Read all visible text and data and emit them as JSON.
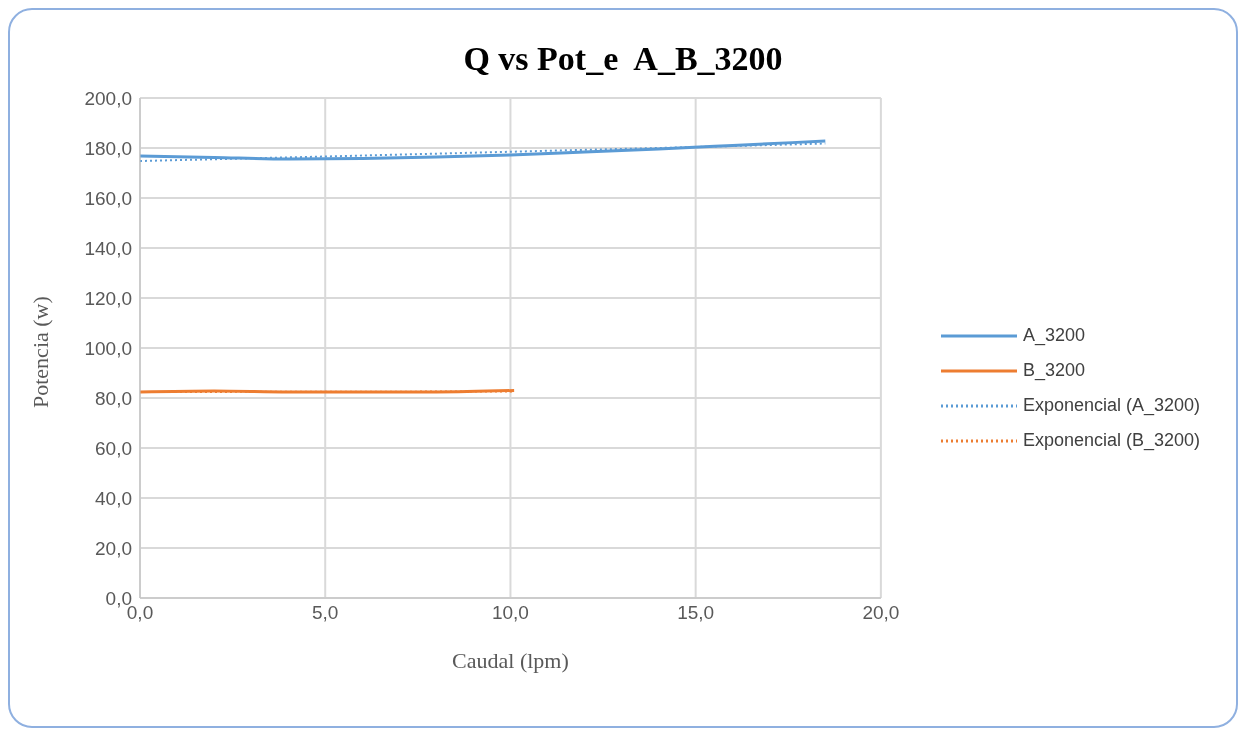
{
  "chart_data": {
    "type": "line",
    "title": "Q vs Pot_e  A_B_3200",
    "xlabel": "Caudal (lpm)",
    "ylabel": "Potencia (w)",
    "xlim": [
      0,
      20
    ],
    "xticks": [
      {
        "value": 0,
        "label": "0,0"
      },
      {
        "value": 5,
        "label": "5,0"
      },
      {
        "value": 10,
        "label": "10,0"
      },
      {
        "value": 15,
        "label": "15,0"
      },
      {
        "value": 20,
        "label": "20,0"
      }
    ],
    "ylim": [
      0,
      200
    ],
    "yticks": [
      {
        "value": 0,
        "label": "0,0"
      },
      {
        "value": 20,
        "label": "20,0"
      },
      {
        "value": 40,
        "label": "40,0"
      },
      {
        "value": 60,
        "label": "60,0"
      },
      {
        "value": 80,
        "label": "80,0"
      },
      {
        "value": 100,
        "label": "100,0"
      },
      {
        "value": 120,
        "label": "120,0"
      },
      {
        "value": 140,
        "label": "140,0"
      },
      {
        "value": 160,
        "label": "160,0"
      },
      {
        "value": 180,
        "label": "180,0"
      },
      {
        "value": 200,
        "label": "200,0"
      }
    ],
    "grid": true,
    "legend": "right",
    "marker": "none",
    "series": [
      {
        "name": "A_3200",
        "color": "#5b9bd5",
        "line_style": "solid",
        "x": [
          0,
          2,
          4,
          6,
          8,
          10,
          12,
          14,
          16,
          18.5
        ],
        "values": [
          176.8,
          176.2,
          175.6,
          175.8,
          176.4,
          177.2,
          178.4,
          179.6,
          181.0,
          182.8
        ]
      },
      {
        "name": "B_3200",
        "color": "#ed7d31",
        "line_style": "solid",
        "x": [
          0,
          2,
          4,
          6,
          8,
          10.1
        ],
        "values": [
          82.4,
          82.8,
          82.4,
          82.4,
          82.4,
          83.0
        ]
      },
      {
        "name": "Exponencial (A_3200)",
        "color": "#5b9bd5",
        "line_style": "dotted",
        "x": [
          0,
          5,
          10,
          15,
          18.5
        ],
        "values": [
          174.8,
          176.6,
          178.5,
          180.4,
          181.8
        ]
      },
      {
        "name": "Exponencial (B_3200)",
        "color": "#ed7d31",
        "line_style": "dotted",
        "x": [
          0,
          5,
          10.1
        ],
        "values": [
          82.4,
          82.5,
          82.6
        ]
      }
    ]
  }
}
